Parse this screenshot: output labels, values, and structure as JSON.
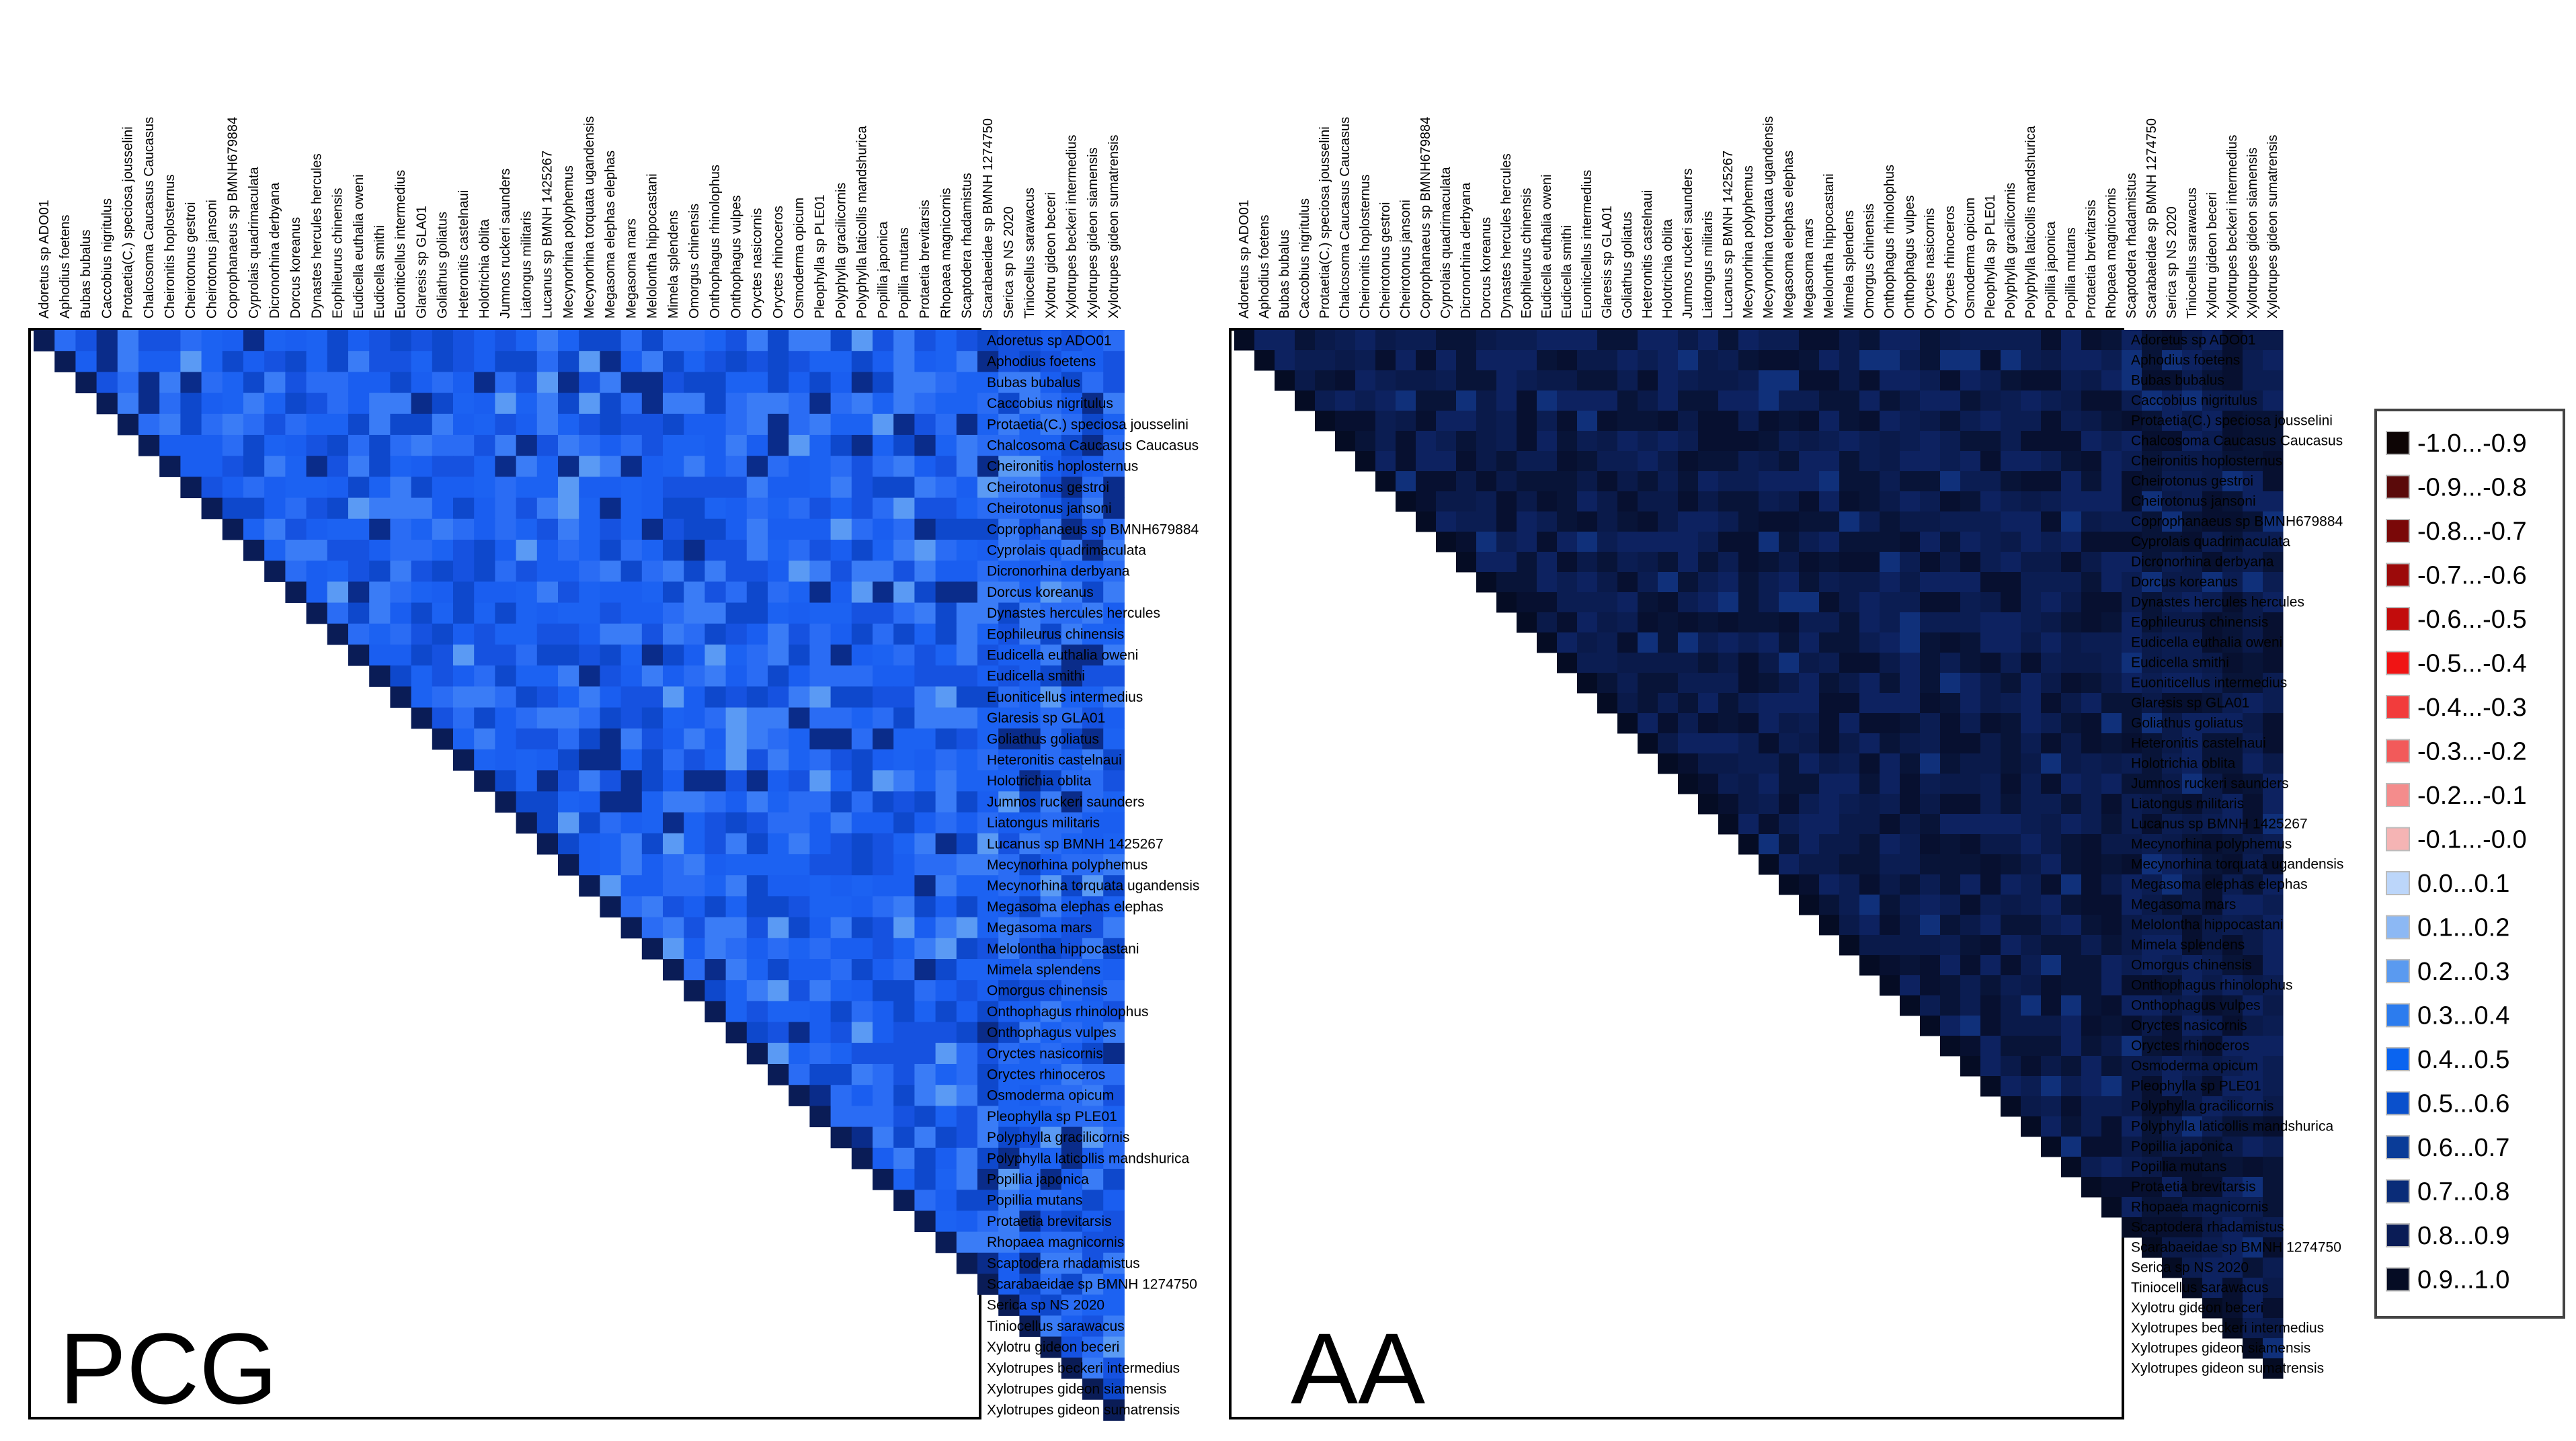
{
  "chart_data": [
    {
      "type": "heatmap",
      "title": "PCG",
      "triangle": "upper",
      "taxa": [
        "Adoretus sp  ADO01",
        "Aphodius foetens",
        "Bubas bubalus",
        "Caccobius nigritulus",
        "Protaetia(C.) speciosa jousselini",
        "Chalcosoma Caucasus Caucasus",
        "Cheironitis hoplosternus",
        "Cheirotonus gestroi",
        "Cheirotonus jansoni",
        "Coprophanaeus sp  BMNH679884",
        "Cyprolais quadrimaculata",
        "Dicronorhina derbyana",
        "Dorcus koreanus",
        "Dynastes hercules hercules",
        "Eophileurus chinensis",
        "Eudicella euthalia oweni",
        "Eudicella smithi",
        "Euoniticellus intermedius",
        "Glaresis sp  GLA01",
        "Goliathus goliatus",
        "Heteronitis castelnaui",
        "Holotrichia oblita",
        "Jumnos ruckeri saunders",
        "Liatongus militaris",
        "Lucanus sp  BMNH 1425267",
        "Mecynorhina polyphemus",
        "Mecynorhina torquata ugandensis",
        "Megasoma elephas elephas",
        "Megasoma mars",
        "Melolontha hippocastani",
        "Mimela splendens",
        "Omorgus chinensis",
        "Onthophagus rhinolophus",
        "Onthophagus vulpes",
        "Oryctes nasicornis",
        "Oryctes rhinoceros",
        "Osmoderma opicum",
        "Pleophylla sp  PLE01",
        "Polyphylla gracilicornis",
        "Polyphylla laticollis mandshurica",
        "Popillia japonica",
        "Popillia mutans",
        "Protaetia brevitarsis",
        "Rhopaea magnicornis",
        "Scaptodera rhadamistus",
        "Scarabaeidae sp  BMNH 1274750",
        "Serica sp  NS 2020",
        "Tiniocellus sarawacus",
        "Xylotru  gideon beceri",
        "Xylotrupes beckeri intermedius",
        "Xylotrupes gideon siamensis",
        "Xylotrupes gideon sumatrensis"
      ],
      "value_range": [
        -1.0,
        1.0
      ],
      "approx_value_range_shown": [
        0.2,
        1.0
      ]
    },
    {
      "type": "heatmap",
      "title": "AA",
      "triangle": "upper",
      "taxa": [
        "Adoretus sp  ADO01",
        "Aphodius foetens",
        "Bubas bubalus",
        "Caccobius nigritulus",
        "Protaetia(C.) speciosa jousselini",
        "Chalcosoma Caucasus Caucasus",
        "Cheironitis hoplosternus",
        "Cheirotonus gestroi",
        "Cheirotonus jansoni",
        "Coprophanaeus sp  BMNH679884",
        "Cyprolais quadrimaculata",
        "Dicronorhina derbyana",
        "Dorcus koreanus",
        "Dynastes hercules hercules",
        "Eophileurus chinensis",
        "Eudicella euthalia oweni",
        "Eudicella smithi",
        "Euoniticellus intermedius",
        "Glaresis sp  GLA01",
        "Goliathus goliatus",
        "Heteronitis castelnaui",
        "Holotrichia oblita",
        "Jumnos ruckeri saunders",
        "Liatongus militaris",
        "Lucanus sp  BMNH 1425267",
        "Mecynorhina polyphemus",
        "Mecynorhina torquata ugandensis",
        "Megasoma elephas elephas",
        "Megasoma mars",
        "Melolontha hippocastani",
        "Mimela splendens",
        "Omorgus chinensis",
        "Onthophagus rhinolophus",
        "Onthophagus vulpes",
        "Oryctes nasicornis",
        "Oryctes rhinoceros",
        "Osmoderma opicum",
        "Pleophylla sp  PLE01",
        "Polyphylla gracilicornis",
        "Polyphylla laticollis mandshurica",
        "Popillia japonica",
        "Popillia mutans",
        "Protaetia brevitarsis",
        "Rhopaea magnicornis",
        "Scaptodera rhadamistus",
        "Scarabaeidae sp  BMNH 1274750",
        "Serica sp  NS 2020",
        "Tiniocellus sarawacus",
        "Xylotru  gideon beceri",
        "Xylotrupes beckeri intermedius",
        "Xylotrupes gideon siamensis",
        "Xylotrupes gideon sumatrensis"
      ],
      "value_range": [
        -1.0,
        1.0
      ],
      "approx_value_range_shown": [
        0.7,
        1.0
      ]
    }
  ],
  "legend": {
    "title": "",
    "entries": [
      {
        "label": "-1.0...-0.9",
        "color": "#0d0505"
      },
      {
        "label": "-0.9...-0.8",
        "color": "#5a0a0a"
      },
      {
        "label": "-0.8...-0.7",
        "color": "#7a0808"
      },
      {
        "label": "-0.7...-0.6",
        "color": "#9c0a0a"
      },
      {
        "label": "-0.6...-0.5",
        "color": "#c20c0c"
      },
      {
        "label": "-0.5...-0.4",
        "color": "#f01414"
      },
      {
        "label": "-0.4...-0.3",
        "color": "#f23c3c"
      },
      {
        "label": "-0.3...-0.2",
        "color": "#f25a5a"
      },
      {
        "label": "-0.2...-0.1",
        "color": "#f48c8c"
      },
      {
        "label": "-0.1...-0.0",
        "color": "#f5b4b4"
      },
      {
        "label": "0.0...0.1",
        "color": "#bcd6fa"
      },
      {
        "label": "0.1...0.2",
        "color": "#8cb8f4"
      },
      {
        "label": "0.2...0.3",
        "color": "#5a9af0"
      },
      {
        "label": "0.3...0.4",
        "color": "#2c7cee"
      },
      {
        "label": "0.4...0.5",
        "color": "#0a64f0"
      },
      {
        "label": "0.5...0.6",
        "color": "#0a50cc"
      },
      {
        "label": "0.6...0.7",
        "color": "#0a3c98"
      },
      {
        "label": "0.7...0.8",
        "color": "#0a2c78"
      },
      {
        "label": "0.8...0.9",
        "color": "#0a1c56"
      },
      {
        "label": "0.9...1.0",
        "color": "#050c24"
      }
    ]
  },
  "colors": {
    "pcg_base": "#1a5ef0",
    "aa_base": "#0a1a4a",
    "frame": "#000000",
    "background": "#ffffff"
  }
}
